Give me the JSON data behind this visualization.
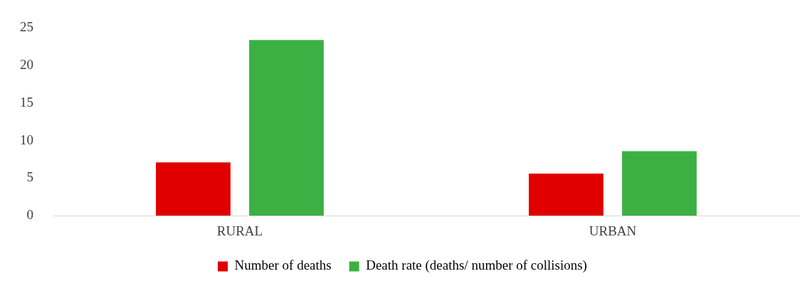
{
  "chart_data": {
    "type": "bar",
    "categories": [
      "RURAL",
      "URBAN"
    ],
    "series": [
      {
        "name": "Number of deaths",
        "color": "#e00000",
        "values": [
          7.1,
          5.6
        ]
      },
      {
        "name": "Death rate (deaths/ number of collisions)",
        "color": "#3cb043",
        "values": [
          23.4,
          8.6
        ]
      }
    ],
    "ylim": [
      0,
      25
    ],
    "yticks": [
      0,
      5,
      10,
      15,
      20,
      25
    ],
    "grid": false,
    "legend": "bottom"
  }
}
